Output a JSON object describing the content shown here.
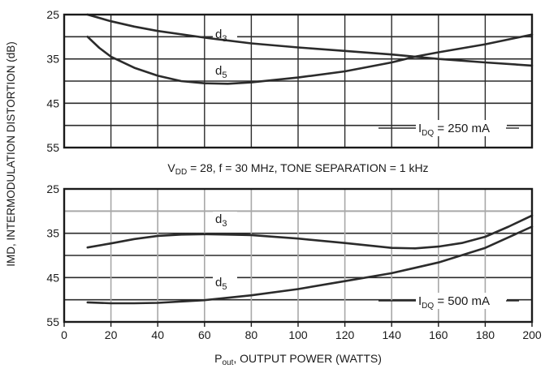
{
  "colors": {
    "curve": "#2b2b2b",
    "grid_dark": "#2b2b2b",
    "grid_light": "#a8a8a8",
    "frame": "#1a1a1a"
  },
  "ylabel": "IMD, INTERMODULATION DISTORTION (dB)",
  "xlabel": {
    "main": "P",
    "sub": "out",
    "rest": ", OUTPUT POWER (WATTS)"
  },
  "conditions": {
    "v": "V",
    "v_sub": "DD",
    "rest": " = 28, f = 30 MHz, TONE SEPARATION = 1 kHz"
  },
  "chart_data": [
    {
      "type": "line",
      "xlim": [
        0,
        200
      ],
      "ylim": [
        25,
        55
      ],
      "y_ticks": [
        "25",
        "35",
        "45",
        "55"
      ],
      "grid": true,
      "condition": {
        "sym": "I",
        "sub": "DQ",
        "rest": " = 250 mA"
      },
      "series": [
        {
          "name": {
            "sym": "d",
            "sub": "3"
          },
          "points": [
            [
              10,
              25
            ],
            [
              20,
              26.5
            ],
            [
              30,
              27.7
            ],
            [
              40,
              28.7
            ],
            [
              60,
              30.2
            ],
            [
              80,
              31.5
            ],
            [
              100,
              32.4
            ],
            [
              120,
              33.2
            ],
            [
              140,
              34
            ],
            [
              150,
              34.5
            ],
            [
              160,
              35
            ],
            [
              180,
              35.8
            ],
            [
              200,
              36.5
            ]
          ]
        },
        {
          "name": {
            "sym": "d",
            "sub": "5"
          },
          "points": [
            [
              10,
              30
            ],
            [
              15,
              32.5
            ],
            [
              20,
              34.5
            ],
            [
              30,
              37
            ],
            [
              40,
              38.8
            ],
            [
              50,
              40
            ],
            [
              60,
              40.5
            ],
            [
              70,
              40.6
            ],
            [
              80,
              40.3
            ],
            [
              100,
              39.2
            ],
            [
              120,
              37.8
            ],
            [
              140,
              35.8
            ],
            [
              150,
              34.5
            ],
            [
              160,
              33.5
            ],
            [
              180,
              31.7
            ],
            [
              200,
              29.5
            ]
          ]
        }
      ]
    },
    {
      "type": "line",
      "xlim": [
        0,
        200
      ],
      "ylim": [
        25,
        55
      ],
      "x_ticks": [
        "0",
        "20",
        "40",
        "60",
        "80",
        "100",
        "120",
        "140",
        "160",
        "180",
        "200"
      ],
      "y_ticks": [
        "25",
        "35",
        "45",
        "55"
      ],
      "grid": true,
      "condition": {
        "sym": "I",
        "sub": "DQ",
        "rest": " = 500 mA"
      },
      "series": [
        {
          "name": {
            "sym": "d",
            "sub": "3"
          },
          "points": [
            [
              10,
              38.2
            ],
            [
              20,
              37.3
            ],
            [
              30,
              36.3
            ],
            [
              40,
              35.6
            ],
            [
              50,
              35.3
            ],
            [
              60,
              35.2
            ],
            [
              70,
              35.3
            ],
            [
              80,
              35.4
            ],
            [
              100,
              36.2
            ],
            [
              120,
              37.2
            ],
            [
              140,
              38.3
            ],
            [
              150,
              38.4
            ],
            [
              160,
              38
            ],
            [
              170,
              37.2
            ],
            [
              180,
              35.8
            ],
            [
              190,
              33.5
            ],
            [
              200,
              31
            ]
          ]
        },
        {
          "name": {
            "sym": "d",
            "sub": "5"
          },
          "points": [
            [
              10,
              50.6
            ],
            [
              20,
              50.8
            ],
            [
              30,
              50.8
            ],
            [
              40,
              50.7
            ],
            [
              60,
              50.1
            ],
            [
              80,
              49
            ],
            [
              100,
              47.6
            ],
            [
              120,
              45.8
            ],
            [
              140,
              44
            ],
            [
              160,
              41.6
            ],
            [
              180,
              38.3
            ],
            [
              200,
              33.5
            ]
          ]
        }
      ]
    }
  ]
}
